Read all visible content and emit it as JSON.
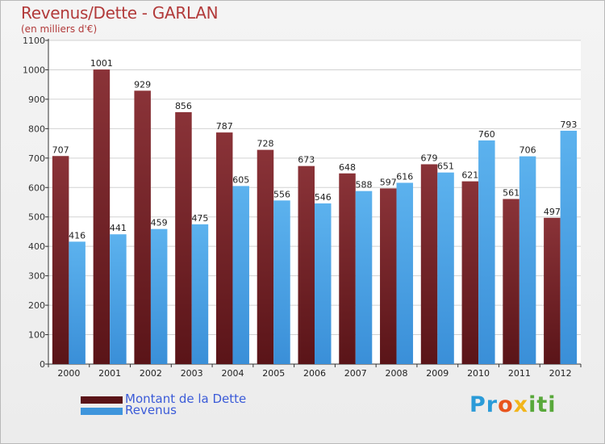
{
  "title": "Revenus/Dette - GARLAN",
  "subtitle": "(en milliers d'€)",
  "logo": {
    "text": "Proxiti"
  },
  "colors": {
    "dette": "#7a2a2f",
    "revenus": "#4aa3e6",
    "title": "#b23a3a",
    "legend_text": "#3b5bd8"
  },
  "chart_data": {
    "type": "bar",
    "categories": [
      "2000",
      "2001",
      "2002",
      "2003",
      "2004",
      "2005",
      "2006",
      "2007",
      "2008",
      "2009",
      "2010",
      "2011",
      "2012"
    ],
    "series": [
      {
        "name": "Montant de la Dette",
        "values": [
          707,
          1001,
          929,
          856,
          787,
          728,
          673,
          648,
          597,
          679,
          621,
          561,
          497
        ]
      },
      {
        "name": "Revenus",
        "values": [
          416,
          441,
          459,
          475,
          605,
          556,
          546,
          588,
          616,
          651,
          760,
          706,
          793
        ]
      }
    ],
    "ylim": [
      0,
      1100
    ],
    "yticks": [
      0,
      100,
      200,
      300,
      400,
      500,
      600,
      700,
      800,
      900,
      1000,
      1100
    ],
    "grid": true,
    "legend": "bottom-left"
  }
}
